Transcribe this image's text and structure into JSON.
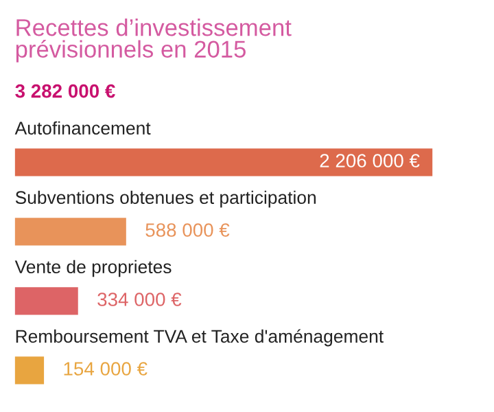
{
  "chart_data": {
    "type": "bar",
    "orientation": "horizontal",
    "title": "Recettes d’investissement\nprévisionnels en 2015",
    "subtitle": "3 282 000 €",
    "categories": [
      "Autofinancement",
      "Subventions obtenues et participation",
      "Vente de proprietes",
      "Remboursement TVA et Taxe d'aménagement"
    ],
    "values": [
      2206000,
      588000,
      334000,
      154000
    ],
    "colors": [
      "#dd6a4c",
      "#e8935a",
      "#dd6466",
      "#e8a540"
    ],
    "value_labels": [
      "2 206 000 €",
      "588 000 €",
      "334 000 €",
      "154 000 €"
    ]
  }
}
